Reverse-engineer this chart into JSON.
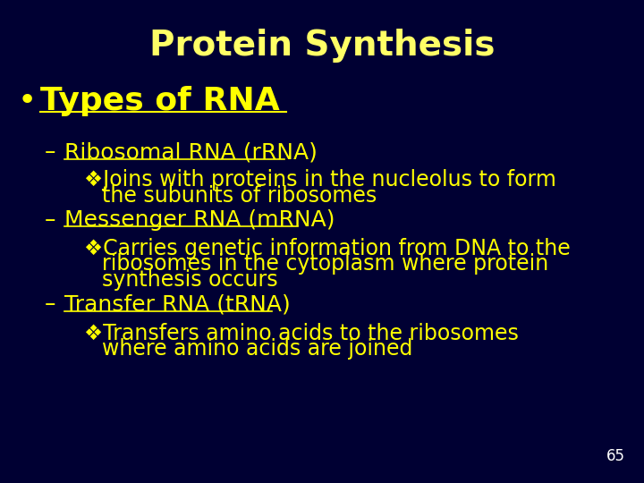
{
  "title": "Protein Synthesis",
  "title_color": "#FFFF66",
  "title_fontsize": 28,
  "bg_color": "#000033",
  "text_color": "#FFFF00",
  "white_color": "#FFFFFF",
  "slide_number": "65",
  "bullet_text": "Types of RNA",
  "bullet_fontsize": 26,
  "level1_fontsize": 18,
  "level2_fontsize": 17,
  "dash_char": "–",
  "bullet_char": "•",
  "diamond_char": "❖"
}
